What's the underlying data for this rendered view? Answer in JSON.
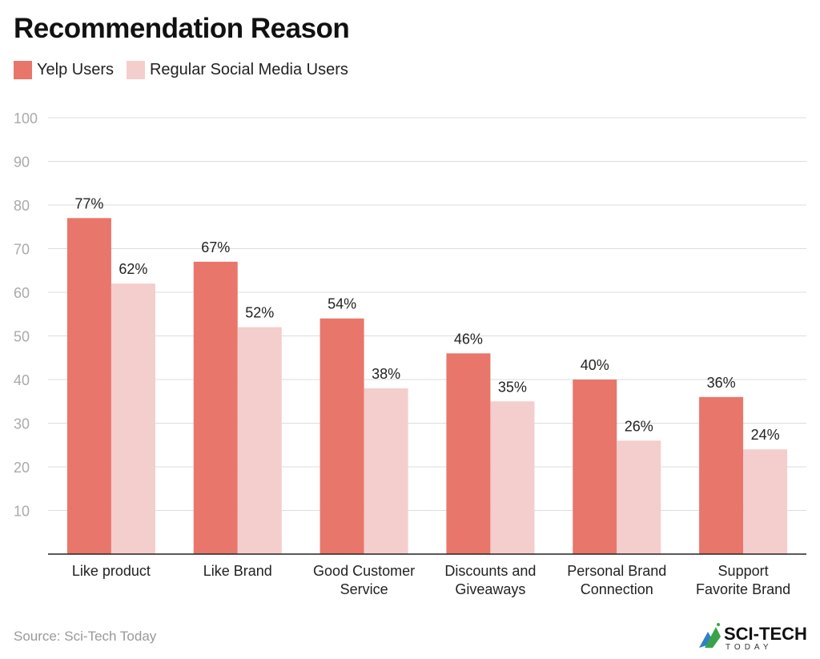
{
  "chart_data": {
    "type": "bar",
    "title": "Recommendation Reason",
    "categories": [
      [
        "Like product"
      ],
      [
        "Like Brand"
      ],
      [
        "Good Customer",
        "Service"
      ],
      [
        "Discounts and",
        "Giveaways"
      ],
      [
        "Personal Brand",
        "Connection"
      ],
      [
        "Support",
        "Favorite Brand"
      ]
    ],
    "series": [
      {
        "name": "Yelp Users",
        "color": "#e8766b",
        "values": [
          77,
          67,
          54,
          46,
          40,
          36
        ]
      },
      {
        "name": "Regular Social Media Users",
        "color": "#f4cdcd",
        "values": [
          62,
          52,
          38,
          35,
          26,
          24
        ]
      }
    ],
    "value_suffix": "%",
    "ylim": [
      0,
      100
    ],
    "yticks": [
      10,
      20,
      30,
      40,
      50,
      60,
      70,
      80,
      90,
      100
    ],
    "grid": true,
    "legend": "top-left",
    "xlabel": "",
    "ylabel": ""
  },
  "source": "Source: Sci-Tech Today",
  "logo": {
    "text": "SCI-TECH",
    "subtext": "TODAY"
  }
}
